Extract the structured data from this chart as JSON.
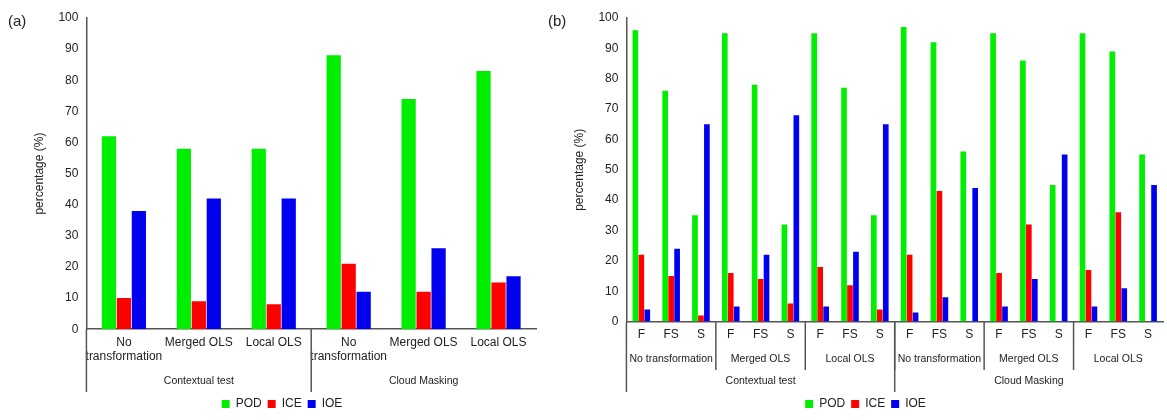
{
  "chart_data": [
    {
      "type": "bar",
      "title": "(a)",
      "ylabel": "percentage (%)",
      "categories": [
        "No transformation",
        "Merged OLS",
        "Local OLS",
        "No transformation",
        "Merged OLS",
        "Local OLS"
      ],
      "annotations": [
        "Contextual test",
        "Cloud Masking"
      ],
      "series": [
        {
          "name": "POD",
          "color": "#00ee00",
          "values": [
            62,
            58,
            58,
            88,
            74,
            83
          ]
        },
        {
          "name": "ICE",
          "color": "#ff0000",
          "values": [
            10,
            9,
            8,
            21,
            12,
            15
          ]
        },
        {
          "name": "IOE",
          "color": "#0000ee",
          "values": [
            38,
            42,
            42,
            12,
            26,
            17
          ]
        }
      ],
      "ylim": [
        0,
        100
      ],
      "yticks": [
        0,
        10,
        20,
        30,
        40,
        50,
        60,
        70,
        80,
        90,
        100
      ],
      "grid": false,
      "legend": "bottom"
    },
    {
      "type": "bar",
      "title": "(b)",
      "ylabel": "percentage (%)",
      "categories": [
        "F",
        "FS",
        "S",
        "F",
        "FS",
        "S",
        "F",
        "FS",
        "S",
        "F",
        "FS",
        "S",
        "F",
        "FS",
        "S",
        "F",
        "FS",
        "S"
      ],
      "annotations": [
        "No transformation",
        "Merged OLS",
        "Local OLS",
        "No transformation",
        "Merged OLS",
        "Local OLS",
        "Contextual test",
        "Cloud Masking"
      ],
      "series": [
        {
          "name": "POD",
          "color": "#00ee00",
          "values": [
            96,
            76,
            35,
            95,
            78,
            32,
            95,
            77,
            35,
            97,
            92,
            56,
            95,
            86,
            45,
            95,
            89,
            55
          ]
        },
        {
          "name": "ICE",
          "color": "#ff0000",
          "values": [
            22,
            15,
            2,
            16,
            14,
            6,
            18,
            12,
            4,
            22,
            43,
            0,
            16,
            32,
            0,
            17,
            36,
            0
          ]
        },
        {
          "name": "IOE",
          "color": "#0000ee",
          "values": [
            4,
            24,
            65,
            5,
            22,
            68,
            5,
            23,
            65,
            3,
            8,
            44,
            5,
            14,
            55,
            5,
            11,
            45
          ]
        }
      ],
      "ylim": [
        0,
        100
      ],
      "yticks": [
        0,
        10,
        20,
        30,
        40,
        50,
        60,
        70,
        80,
        90,
        100
      ],
      "grid": false,
      "legend": "bottom"
    }
  ]
}
